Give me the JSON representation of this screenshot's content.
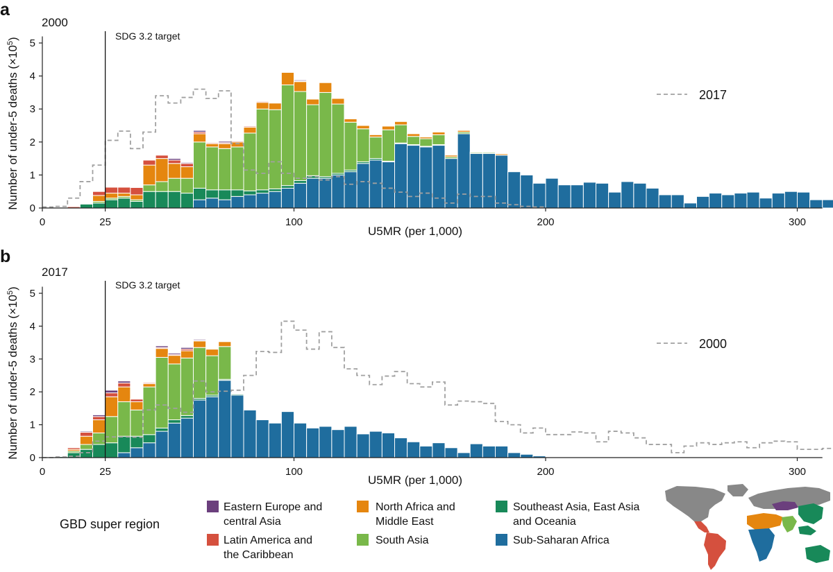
{
  "figure": {
    "colors": {
      "eeca": "#6b3f7d",
      "lac": "#d5503e",
      "name": "#e5860f",
      "sa": "#79b84a",
      "seao": "#188959",
      "ssa": "#1f6d9e",
      "step": "#a0a0a0",
      "map_gray": "#888888"
    },
    "legend": {
      "title": "GBD super region",
      "items": [
        {
          "key": "eeca",
          "label_l1": "Eastern Europe and",
          "label_l2": "central Asia"
        },
        {
          "key": "lac",
          "label_l1": "Latin America and",
          "label_l2": "the Caribbean"
        },
        {
          "key": "name",
          "label_l1": "North Africa and",
          "label_l2": "Middle East"
        },
        {
          "key": "sa",
          "label_l1": "South Asia",
          "label_l2": ""
        },
        {
          "key": "seao",
          "label_l1": "Southeast Asia, East Asia",
          "label_l2": "and Oceania"
        },
        {
          "key": "ssa",
          "label_l1": "Sub-Saharan Africa",
          "label_l2": ""
        }
      ]
    },
    "map": {
      "icon": "world-map-icon"
    }
  },
  "chart_data": [
    {
      "type": "bar",
      "stacked": true,
      "panel_letter": "a",
      "year_label": "2000",
      "xlabel": "U5MR (per 1,000)",
      "ylabel": "Number of under-5 deaths (×10",
      "ylabel_sup": "5",
      "ylabel_close": ")",
      "xlim": [
        0,
        310
      ],
      "ylim": [
        0,
        5.2
      ],
      "xticks": [
        0,
        25,
        100,
        200,
        300
      ],
      "yticks": [
        0,
        1,
        2,
        3,
        4,
        5
      ],
      "bin_width": 5,
      "bin_start": 0,
      "reference_line": {
        "x": 25,
        "label": "SDG 3.2 target"
      },
      "step_series": {
        "name": "2017"
      },
      "series_order": [
        "ssa",
        "seao",
        "sa",
        "name",
        "lac",
        "eeca"
      ],
      "totals": [
        0,
        0.02,
        0.04,
        0.15,
        0.5,
        0.63,
        0.63,
        0.62,
        1.45,
        1.6,
        1.5,
        1.38,
        2.33,
        2.0,
        2.02,
        2.05,
        2.5,
        3.23,
        3.2,
        4.15,
        3.88,
        3.3,
        3.83,
        3.35,
        2.7,
        2.5,
        2.22,
        2.48,
        2.62,
        2.25,
        2.15,
        2.3,
        1.6,
        1.72,
        1.7,
        1.65,
        1.1,
        1.0,
        0.75,
        0.9,
        0.7,
        0.7,
        0.78,
        0.75,
        0.48,
        0.8,
        0.75,
        0.6,
        0.4,
        0.4,
        0.15,
        0.35,
        0.45,
        0.4,
        0.45,
        0.48,
        0.3,
        0.45,
        0.5,
        0.48,
        0.25,
        0.25,
        0.28,
        0.05,
        0.03
      ],
      "ssa": [
        0,
        0,
        0,
        0,
        0,
        0,
        0,
        0,
        0,
        0,
        0,
        0,
        0.25,
        0.3,
        0.25,
        0.35,
        0.4,
        0.45,
        0.5,
        0.6,
        0.75,
        0.9,
        0.9,
        1.0,
        1.1,
        1.35,
        1.45,
        1.4,
        1.95,
        1.9,
        1.85,
        1.9,
        1.5,
        2.25,
        1.65,
        1.65,
        1.6,
        1.1,
        1.0,
        0.75,
        0.9,
        0.7,
        0.7,
        0.78,
        0.75,
        0.48,
        0.8,
        0.75,
        0.6,
        0.4,
        0.4,
        0.15,
        0.35,
        0.45,
        0.4,
        0.45,
        0.48,
        0.3,
        0.45,
        0.5,
        0.48,
        0.25,
        0.25,
        0.28,
        0.05
      ],
      "seao": [
        0,
        0,
        0,
        0.12,
        0.15,
        0.25,
        0.3,
        0.2,
        0.5,
        0.5,
        0.5,
        0.45,
        0.35,
        0.25,
        0.3,
        0.2,
        0.12,
        0.1,
        0.08,
        0.08,
        0.08,
        0.08,
        0.05,
        0.05,
        0.05,
        0.05,
        0.05,
        0.02,
        0.02,
        0.02,
        0.02,
        0.02,
        0,
        0,
        0,
        0,
        0,
        0,
        0,
        0,
        0,
        0,
        0,
        0,
        0,
        0,
        0,
        0,
        0,
        0,
        0,
        0,
        0,
        0,
        0,
        0,
        0,
        0,
        0,
        0,
        0,
        0,
        0,
        0,
        0
      ],
      "sa": [
        0,
        0,
        0,
        0.02,
        0.05,
        0.05,
        0.05,
        0.05,
        0.2,
        0.3,
        0.4,
        0.45,
        1.4,
        1.3,
        1.25,
        1.3,
        1.75,
        2.45,
        2.4,
        3.05,
        2.7,
        2.15,
        2.55,
        2.1,
        1.45,
        1.0,
        0.65,
        0.95,
        0.55,
        0.25,
        0.23,
        0.3,
        0.05,
        0.05,
        0.03,
        0.03,
        0,
        0,
        0,
        0,
        0,
        0,
        0,
        0,
        0,
        0,
        0,
        0,
        0,
        0,
        0,
        0,
        0,
        0,
        0,
        0,
        0,
        0,
        0,
        0,
        0,
        0,
        0,
        0,
        0
      ],
      "name": [
        0,
        0,
        0,
        0,
        0.18,
        0.15,
        0.1,
        0.15,
        0.6,
        0.7,
        0.45,
        0.35,
        0.25,
        0.1,
        0.15,
        0.15,
        0.18,
        0.2,
        0.2,
        0.38,
        0.3,
        0.17,
        0.3,
        0.17,
        0.1,
        0.1,
        0.07,
        0.11,
        0.1,
        0.08,
        0.05,
        0.08,
        0.05,
        0.05,
        0.02,
        0.02,
        0.04,
        0.02,
        0,
        0,
        0,
        0,
        0,
        0,
        0,
        0,
        0,
        0,
        0,
        0,
        0,
        0,
        0,
        0,
        0,
        0,
        0,
        0,
        0,
        0,
        0,
        0,
        0,
        0,
        0
      ],
      "lac": [
        0,
        0.02,
        0.04,
        0.01,
        0.12,
        0.18,
        0.18,
        0.22,
        0.15,
        0.1,
        0.1,
        0.1,
        0.05,
        0.03,
        0.03,
        0.03,
        0.03,
        0.03,
        0.02,
        0.02,
        0.02,
        0.02,
        0.01,
        0.01,
        0,
        0,
        0,
        0,
        0,
        0,
        0,
        0,
        0,
        0,
        0,
        0,
        0,
        0,
        0,
        0,
        0,
        0,
        0,
        0,
        0,
        0,
        0,
        0,
        0,
        0,
        0,
        0,
        0,
        0,
        0,
        0,
        0,
        0,
        0,
        0,
        0,
        0,
        0,
        0,
        0
      ],
      "eeca": [
        0,
        0,
        0,
        0,
        0,
        0,
        0,
        0,
        0,
        0,
        0.05,
        0.03,
        0.05,
        0.02,
        0.04,
        0.02,
        0.02,
        0.02,
        0.02,
        0.02,
        0.03,
        0.02,
        0.02,
        0.02,
        0,
        0,
        0,
        0,
        0,
        0,
        0,
        0,
        0,
        0,
        0,
        0,
        0,
        0,
        0,
        0,
        0,
        0,
        0,
        0,
        0,
        0,
        0,
        0,
        0,
        0,
        0,
        0,
        0,
        0,
        0,
        0,
        0,
        0,
        0,
        0,
        0,
        0,
        0,
        0,
        0
      ]
    },
    {
      "type": "bar",
      "stacked": true,
      "panel_letter": "b",
      "year_label": "2017",
      "xlabel": "U5MR (per 1,000)",
      "ylabel": "Number of under-5 deaths (×10",
      "ylabel_sup": "5",
      "ylabel_close": ")",
      "xlim": [
        0,
        310
      ],
      "ylim": [
        0,
        5.2
      ],
      "xticks": [
        0,
        25,
        100,
        200,
        300
      ],
      "yticks": [
        0,
        1,
        2,
        3,
        4,
        5
      ],
      "bin_width": 5,
      "bin_start": 0,
      "reference_line": {
        "x": 25,
        "label": "SDG 3.2 target"
      },
      "step_series": {
        "name": "2000"
      },
      "series_order": [
        "ssa",
        "seao",
        "sa",
        "name",
        "lac",
        "eeca"
      ],
      "totals": [
        0.03,
        0.05,
        0.3,
        0.8,
        1.3,
        2.05,
        2.33,
        1.8,
        2.3,
        3.4,
        3.18,
        3.35,
        3.6,
        3.32,
        3.55,
        1.95,
        1.15,
        1.05,
        1.4,
        1.05,
        0.9,
        0.95,
        0.85,
        0.95,
        0.72,
        0.8,
        0.75,
        0.6,
        0.48,
        0.35,
        0.45,
        0.3,
        0.15,
        0.42,
        0.35,
        0.35,
        0.15,
        0.1,
        0.05,
        0.03
      ],
      "ssa": [
        0,
        0,
        0,
        0,
        0,
        0,
        0.15,
        0.3,
        0.45,
        0.8,
        1.05,
        1.2,
        1.75,
        1.85,
        2.35,
        1.9,
        1.45,
        1.15,
        1.05,
        1.4,
        1.05,
        0.9,
        0.95,
        0.85,
        0.95,
        0.72,
        0.8,
        0.75,
        0.6,
        0.48,
        0.35,
        0.45,
        0.3,
        0.15,
        0.42,
        0.35,
        0.35,
        0.15,
        0.1,
        0.05
      ],
      "seao": [
        0.02,
        0.03,
        0.15,
        0.25,
        0.4,
        0.45,
        0.5,
        0.35,
        0.25,
        0.1,
        0.1,
        0.08,
        0.05,
        0.05,
        0.03,
        0.03,
        0.02,
        0.02,
        0,
        0,
        0,
        0,
        0,
        0,
        0,
        0,
        0,
        0,
        0,
        0,
        0,
        0,
        0,
        0,
        0,
        0,
        0,
        0,
        0,
        0
      ],
      "sa": [
        0,
        0.01,
        0.05,
        0.15,
        0.35,
        0.8,
        1.05,
        0.8,
        1.45,
        2.15,
        1.7,
        1.75,
        1.55,
        1.2,
        1.0,
        0.0,
        0.0,
        0.0,
        0,
        0,
        0,
        0,
        0,
        0,
        0,
        0,
        0,
        0,
        0,
        0,
        0,
        0,
        0,
        0,
        0,
        0,
        0,
        0,
        0,
        0
      ],
      "name": [
        0.01,
        0.01,
        0.05,
        0.25,
        0.4,
        0.6,
        0.45,
        0.25,
        0.1,
        0.27,
        0.26,
        0.22,
        0.2,
        0.2,
        0.15,
        0.01,
        0.01,
        0.0,
        0,
        0,
        0,
        0,
        0,
        0,
        0,
        0,
        0,
        0,
        0,
        0,
        0,
        0,
        0,
        0,
        0,
        0,
        0,
        0,
        0,
        0
      ],
      "lac": [
        0,
        0,
        0.05,
        0.12,
        0.1,
        0.12,
        0.12,
        0.08,
        0.03,
        0.03,
        0.03,
        0.05,
        0.02,
        0.0,
        0.0,
        0,
        0,
        0,
        0,
        0,
        0,
        0,
        0,
        0,
        0,
        0,
        0,
        0,
        0,
        0,
        0,
        0,
        0,
        0,
        0,
        0,
        0,
        0,
        0,
        0
      ],
      "eeca": [
        0,
        0,
        0,
        0.03,
        0.05,
        0.08,
        0.06,
        0.02,
        0.02,
        0.05,
        0.04,
        0.05,
        0.03,
        0.02,
        0.02,
        0.01,
        0,
        0,
        0,
        0,
        0,
        0,
        0,
        0,
        0,
        0,
        0,
        0,
        0,
        0,
        0,
        0,
        0,
        0,
        0,
        0,
        0,
        0,
        0,
        0
      ]
    }
  ]
}
